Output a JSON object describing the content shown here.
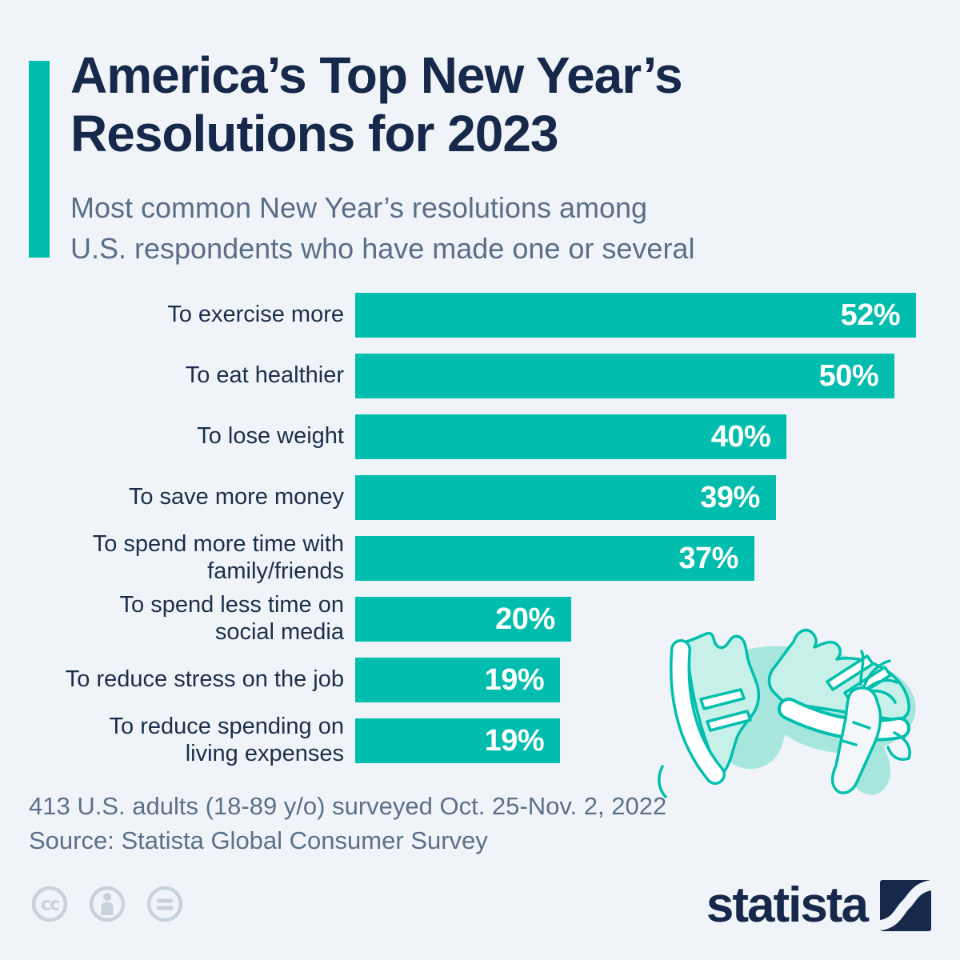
{
  "page": {
    "background_color": "#f0f4f8",
    "accent_color": "#00bdad"
  },
  "header": {
    "title_lines": [
      "America’s Top New Year’s",
      "Resolutions for 2023"
    ],
    "title_full": "America’s Top New Year’s Resolutions for 2023",
    "title_color": "#16294b",
    "subtitle_lines": [
      "Most common New Year’s resolutions among",
      "U.S. respondents who have made one or several"
    ],
    "subtitle_color": "#5a6e88"
  },
  "chart_data": {
    "type": "bar",
    "orientation": "horizontal",
    "title": "America’s Top New Year’s Resolutions for 2023",
    "subtitle": "Most common New Year’s resolutions among U.S. respondents who have made one or several",
    "categories": [
      "To exercise more",
      "To eat healthier",
      "To lose weight",
      "To save more money",
      "To spend more time with\nfamily/friends",
      "To spend less time on\nsocial media",
      "To reduce stress on the job",
      "To reduce spending on\nliving expenses"
    ],
    "values": [
      52,
      50,
      40,
      39,
      37,
      20,
      19,
      19
    ],
    "unit": "%",
    "xlim": [
      0,
      53.4
    ],
    "grid": false,
    "legend": false,
    "bar_color": "#00bdad",
    "value_label_color": "#ffffff",
    "value_label_position": "inside-end",
    "category_label_color": "#1b2e4a"
  },
  "footer": {
    "note": "413 U.S. adults (18-89 y/o) surveyed Oct. 25-Nov. 2, 2022",
    "source": "Source: Statista Global Consumer Survey"
  },
  "branding": {
    "logo_text": "statista",
    "logo_color": "#16294b",
    "license_icon_color": "#c8d2dc",
    "license_icons": [
      {
        "name": "cc-icon",
        "label": "cc"
      },
      {
        "name": "cc-by-person-icon"
      },
      {
        "name": "cc-nd-equals-icon"
      }
    ],
    "illustration": "sneakers-and-carrot",
    "illustration_stroke": "#00bfad",
    "illustration_fill": "#c7f0e9",
    "illustration_shadow": "#a6e6dd"
  }
}
